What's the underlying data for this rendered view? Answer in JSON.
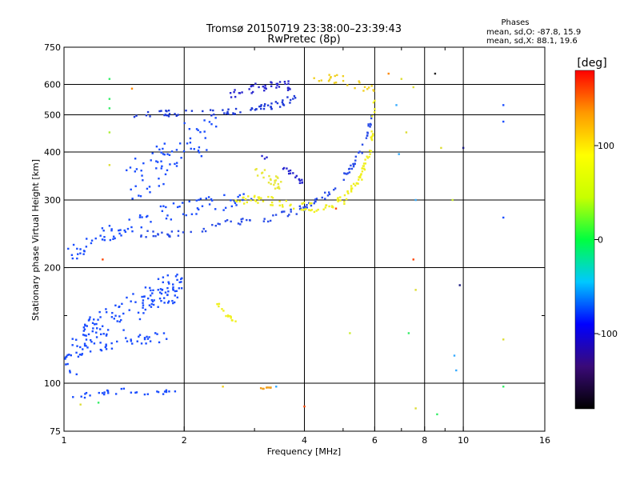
{
  "chart_data": {
    "type": "scatter",
    "title": "Tromsø 20150719 23:38:00–23:39:43",
    "subtitle": "RwPretec (8p)",
    "xlabel": "Frequency [MHz]",
    "ylabel": "Stationary phase Virtual Height [km]",
    "x_scale": "log",
    "y_scale": "log",
    "xlim": [
      1,
      16
    ],
    "ylim": [
      75,
      750
    ],
    "x_ticks": [
      1,
      2,
      4,
      6,
      8,
      10,
      16
    ],
    "x_tick_labels": [
      "1",
      "2",
      "4",
      "6",
      "8",
      "10",
      "16"
    ],
    "x_grid": [
      2,
      4,
      6,
      8,
      10
    ],
    "x_minor_ticks": [
      3,
      5,
      7,
      9
    ],
    "y_ticks": [
      75,
      100,
      200,
      300,
      400,
      500,
      600,
      750
    ],
    "y_tick_labels": [
      "75",
      "100",
      "200",
      "300",
      "400",
      "500",
      "600",
      "750"
    ],
    "y_grid": [
      100,
      200,
      300,
      400,
      500,
      600
    ],
    "y_minor_ticks": [
      150
    ],
    "grid": true,
    "phase_stats": {
      "title": "Phases",
      "line_o": "mean, sd,O: -87.8, 15.9",
      "line_x": "mean, sd,X:  88.1, 19.6"
    },
    "colorbar": {
      "label": "[deg]",
      "range": [
        -180,
        180
      ],
      "ticks": [
        100,
        0,
        -100
      ],
      "tick_labels": [
        "100",
        "0",
        "-100"
      ],
      "colors": [
        "#000000",
        "#3a0a78",
        "#0000ff",
        "#00c8ff",
        "#00ff40",
        "#c8ff00",
        "#ffff00",
        "#ff9900",
        "#ff0000"
      ]
    },
    "series": [
      {
        "phase": -100,
        "curve": [
          [
            1.0,
            100
          ],
          [
            1.1,
            128
          ],
          [
            1.2,
            140
          ],
          [
            1.4,
            150
          ],
          [
            1.6,
            165
          ],
          [
            1.8,
            175
          ],
          [
            1.95,
            178
          ]
        ],
        "spread": 0.09,
        "points": 150,
        "color": "#1a4dff"
      },
      {
        "phase": -100,
        "curve": [
          [
            1.0,
            118
          ],
          [
            1.25,
            125
          ],
          [
            1.5,
            130
          ],
          [
            1.8,
            132
          ]
        ],
        "spread": 0.03,
        "points": 40,
        "color": "#1a4dff"
      },
      {
        "phase": -100,
        "curve": [
          [
            1.05,
            92
          ],
          [
            1.4,
            95
          ],
          [
            1.9,
            94
          ]
        ],
        "spread": 0.02,
        "points": 30,
        "color": "#1a4dff"
      },
      {
        "phase": -100,
        "curve": [
          [
            1.0,
            215
          ],
          [
            1.2,
            235
          ],
          [
            1.4,
            255
          ],
          [
            1.6,
            270
          ],
          [
            2.0,
            285
          ],
          [
            2.5,
            295
          ],
          [
            3.0,
            300
          ]
        ],
        "spread": 0.05,
        "points": 90,
        "color": "#1a4dff"
      },
      {
        "phase": -100,
        "curve": [
          [
            1.55,
            245
          ],
          [
            2.0,
            245
          ],
          [
            2.6,
            262
          ],
          [
            3.2,
            268
          ],
          [
            3.8,
            280
          ],
          [
            4.4,
            300
          ],
          [
            5.0,
            340
          ],
          [
            5.6,
            410
          ],
          [
            6.0,
            520
          ]
        ],
        "spread": 0.02,
        "points": 110,
        "color": "#2a4de8"
      },
      {
        "phase": -100,
        "curve": [
          [
            1.4,
            330
          ],
          [
            1.7,
            360
          ],
          [
            2.0,
            420
          ],
          [
            2.4,
            440
          ]
        ],
        "spread": 0.12,
        "points": 70,
        "color": "#1a4dff"
      },
      {
        "phase": -105,
        "curve": [
          [
            1.5,
            500
          ],
          [
            2.0,
            505
          ],
          [
            2.6,
            510
          ],
          [
            3.0,
            520
          ],
          [
            3.4,
            530
          ],
          [
            3.8,
            555
          ]
        ],
        "spread": 0.02,
        "points": 70,
        "color": "#1e3ad8"
      },
      {
        "phase": -110,
        "curve": [
          [
            2.6,
            570
          ],
          [
            3.0,
            585
          ],
          [
            3.4,
            600
          ],
          [
            3.7,
            595
          ]
        ],
        "spread": 0.03,
        "points": 40,
        "color": "#2a28d0"
      },
      {
        "phase": -110,
        "curve": [
          [
            3.1,
            390
          ],
          [
            3.4,
            375
          ],
          [
            3.8,
            345
          ],
          [
            4.0,
            330
          ]
        ],
        "spread": 0.015,
        "points": 20,
        "color": "#2a28d0"
      },
      {
        "phase": 100,
        "curve": [
          [
            2.7,
            300
          ],
          [
            3.2,
            300
          ],
          [
            3.8,
            290
          ],
          [
            4.4,
            285
          ],
          [
            5.0,
            300
          ],
          [
            5.5,
            340
          ],
          [
            5.9,
            420
          ],
          [
            6.0,
            560
          ]
        ],
        "spread": 0.025,
        "points": 120,
        "color": "#f0f020"
      },
      {
        "phase": 110,
        "curve": [
          [
            3.0,
            360
          ],
          [
            3.3,
            340
          ],
          [
            3.5,
            330
          ]
        ],
        "spread": 0.04,
        "points": 25,
        "color": "#e8e83a"
      },
      {
        "phase": 110,
        "curve": [
          [
            2.4,
            163
          ],
          [
            2.55,
            150
          ],
          [
            2.7,
            145
          ]
        ],
        "spread": 0.01,
        "points": 15,
        "color": "#f0f020"
      },
      {
        "phase": 110,
        "curve": [
          [
            4.2,
            610
          ],
          [
            4.8,
            620
          ],
          [
            5.4,
            600
          ],
          [
            6.0,
            580
          ]
        ],
        "spread": 0.03,
        "points": 25,
        "color": "#f0d020"
      },
      {
        "phase": 110,
        "curve": [
          [
            3.1,
            97
          ],
          [
            3.3,
            97
          ]
        ],
        "spread": 0.005,
        "points": 8,
        "color": "#f0a020"
      }
    ],
    "scattered_points": [
      {
        "x": 1.3,
        "y": 620,
        "color": "#33ee66"
      },
      {
        "x": 1.3,
        "y": 550,
        "color": "#33ee66"
      },
      {
        "x": 1.3,
        "y": 520,
        "color": "#33ee66"
      },
      {
        "x": 1.3,
        "y": 450,
        "color": "#aaee33"
      },
      {
        "x": 1.3,
        "y": 370,
        "color": "#dddd33"
      },
      {
        "x": 1.48,
        "y": 585,
        "color": "#ff8800"
      },
      {
        "x": 1.25,
        "y": 210,
        "color": "#ff4400"
      },
      {
        "x": 1.22,
        "y": 89,
        "color": "#33ee66"
      },
      {
        "x": 1.1,
        "y": 88,
        "color": "#dddd33"
      },
      {
        "x": 2.5,
        "y": 98,
        "color": "#f0d020"
      },
      {
        "x": 3.4,
        "y": 98,
        "color": "#33aaff"
      },
      {
        "x": 4.0,
        "y": 87,
        "color": "#ff4400"
      },
      {
        "x": 4.8,
        "y": 285,
        "color": "#ff4400"
      },
      {
        "x": 5.2,
        "y": 135,
        "color": "#ccee33"
      },
      {
        "x": 6.5,
        "y": 640,
        "color": "#ff8800"
      },
      {
        "x": 7.0,
        "y": 620,
        "color": "#dddd33"
      },
      {
        "x": 7.5,
        "y": 590,
        "color": "#dddd33"
      },
      {
        "x": 8.5,
        "y": 640,
        "color": "#222222"
      },
      {
        "x": 6.8,
        "y": 530,
        "color": "#33aaff"
      },
      {
        "x": 7.2,
        "y": 450,
        "color": "#dddd33"
      },
      {
        "x": 7.6,
        "y": 300,
        "color": "#33aaff"
      },
      {
        "x": 7.5,
        "y": 210,
        "color": "#ff4400"
      },
      {
        "x": 7.6,
        "y": 175,
        "color": "#dddd33"
      },
      {
        "x": 7.3,
        "y": 135,
        "color": "#33ee66"
      },
      {
        "x": 7.6,
        "y": 86,
        "color": "#dddd33"
      },
      {
        "x": 8.6,
        "y": 83,
        "color": "#33ee66"
      },
      {
        "x": 9.5,
        "y": 118,
        "color": "#33aaff"
      },
      {
        "x": 9.6,
        "y": 108,
        "color": "#33aaff"
      },
      {
        "x": 9.8,
        "y": 180,
        "color": "#1a1a80"
      },
      {
        "x": 10.0,
        "y": 410,
        "color": "#1a1a80"
      },
      {
        "x": 9.4,
        "y": 300,
        "color": "#ccee33"
      },
      {
        "x": 12.6,
        "y": 530,
        "color": "#1a4dff"
      },
      {
        "x": 12.6,
        "y": 480,
        "color": "#1a4dff"
      },
      {
        "x": 12.6,
        "y": 270,
        "color": "#1a4dff"
      },
      {
        "x": 12.6,
        "y": 130,
        "color": "#dddd33"
      },
      {
        "x": 12.6,
        "y": 98,
        "color": "#33ee66"
      },
      {
        "x": 8.8,
        "y": 410,
        "color": "#dddd33"
      },
      {
        "x": 6.9,
        "y": 395,
        "color": "#33aaff"
      }
    ]
  }
}
